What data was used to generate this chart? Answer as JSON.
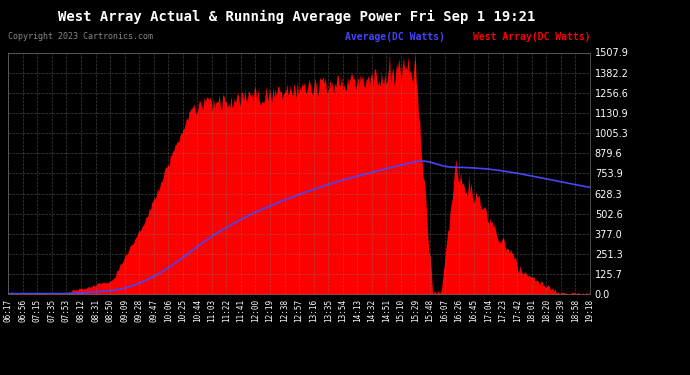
{
  "title": "West Array Actual & Running Average Power Fri Sep 1 19:21",
  "copyright": "Copyright 2023 Cartronics.com",
  "legend_avg": "Average(DC Watts)",
  "legend_west": "West Array(DC Watts)",
  "ylabel_values": [
    0.0,
    125.7,
    251.3,
    377.0,
    502.6,
    628.3,
    753.9,
    879.6,
    1005.3,
    1130.9,
    1256.6,
    1382.2,
    1507.9
  ],
  "ymax": 1507.9,
  "ymin": 0.0,
  "bg_color": "#000000",
  "plot_bg_color": "#000000",
  "grid_color": "#808080",
  "title_color": "#ffffff",
  "fill_color": "#ff0000",
  "avg_line_color": "#4444ff",
  "west_label_color": "#ff0000",
  "avg_label_color": "#4444ff",
  "copyright_color": "#888888",
  "tick_label_color": "#ffffff",
  "x_tick_labels": [
    "06:17",
    "06:56",
    "07:15",
    "07:35",
    "07:53",
    "08:12",
    "08:31",
    "08:50",
    "09:09",
    "09:28",
    "09:47",
    "10:06",
    "10:25",
    "10:44",
    "11:03",
    "11:22",
    "11:41",
    "12:00",
    "12:19",
    "12:38",
    "12:57",
    "13:16",
    "13:35",
    "13:54",
    "14:13",
    "14:32",
    "14:51",
    "15:10",
    "15:29",
    "15:48",
    "16:07",
    "16:26",
    "16:45",
    "17:04",
    "17:23",
    "17:42",
    "18:01",
    "18:20",
    "18:39",
    "18:58",
    "19:18"
  ]
}
